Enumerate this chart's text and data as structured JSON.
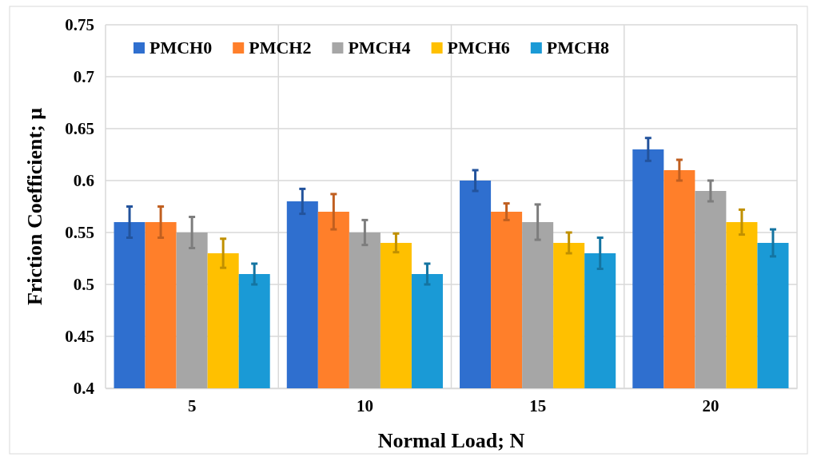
{
  "chart_data": {
    "type": "bar",
    "xlabel": "Normal Load; N",
    "ylabel": "Friction Coefficient; μ",
    "categories": [
      "5",
      "10",
      "15",
      "20"
    ],
    "series": [
      {
        "name": "PMCH0",
        "color": "#2f6fcf",
        "values": [
          0.56,
          0.58,
          0.6,
          0.63
        ],
        "errors": [
          0.015,
          0.012,
          0.01,
          0.011
        ]
      },
      {
        "name": "PMCH2",
        "color": "#ff7f2a",
        "values": [
          0.56,
          0.57,
          0.57,
          0.61
        ],
        "errors": [
          0.015,
          0.017,
          0.008,
          0.01
        ]
      },
      {
        "name": "PMCH4",
        "color": "#a6a6a6",
        "values": [
          0.55,
          0.55,
          0.56,
          0.59
        ],
        "errors": [
          0.015,
          0.012,
          0.017,
          0.01
        ]
      },
      {
        "name": "PMCH6",
        "color": "#ffc000",
        "values": [
          0.53,
          0.54,
          0.54,
          0.56
        ],
        "errors": [
          0.014,
          0.009,
          0.01,
          0.012
        ]
      },
      {
        "name": "PMCH8",
        "color": "#1a9ad6",
        "values": [
          0.51,
          0.51,
          0.53,
          0.54
        ],
        "errors": [
          0.01,
          0.01,
          0.015,
          0.013
        ]
      }
    ],
    "ylim": [
      0.4,
      0.75
    ],
    "yticks": [
      0.4,
      0.45,
      0.5,
      0.55,
      0.6,
      0.65,
      0.7,
      0.75
    ],
    "grid": true,
    "legend": "top"
  }
}
